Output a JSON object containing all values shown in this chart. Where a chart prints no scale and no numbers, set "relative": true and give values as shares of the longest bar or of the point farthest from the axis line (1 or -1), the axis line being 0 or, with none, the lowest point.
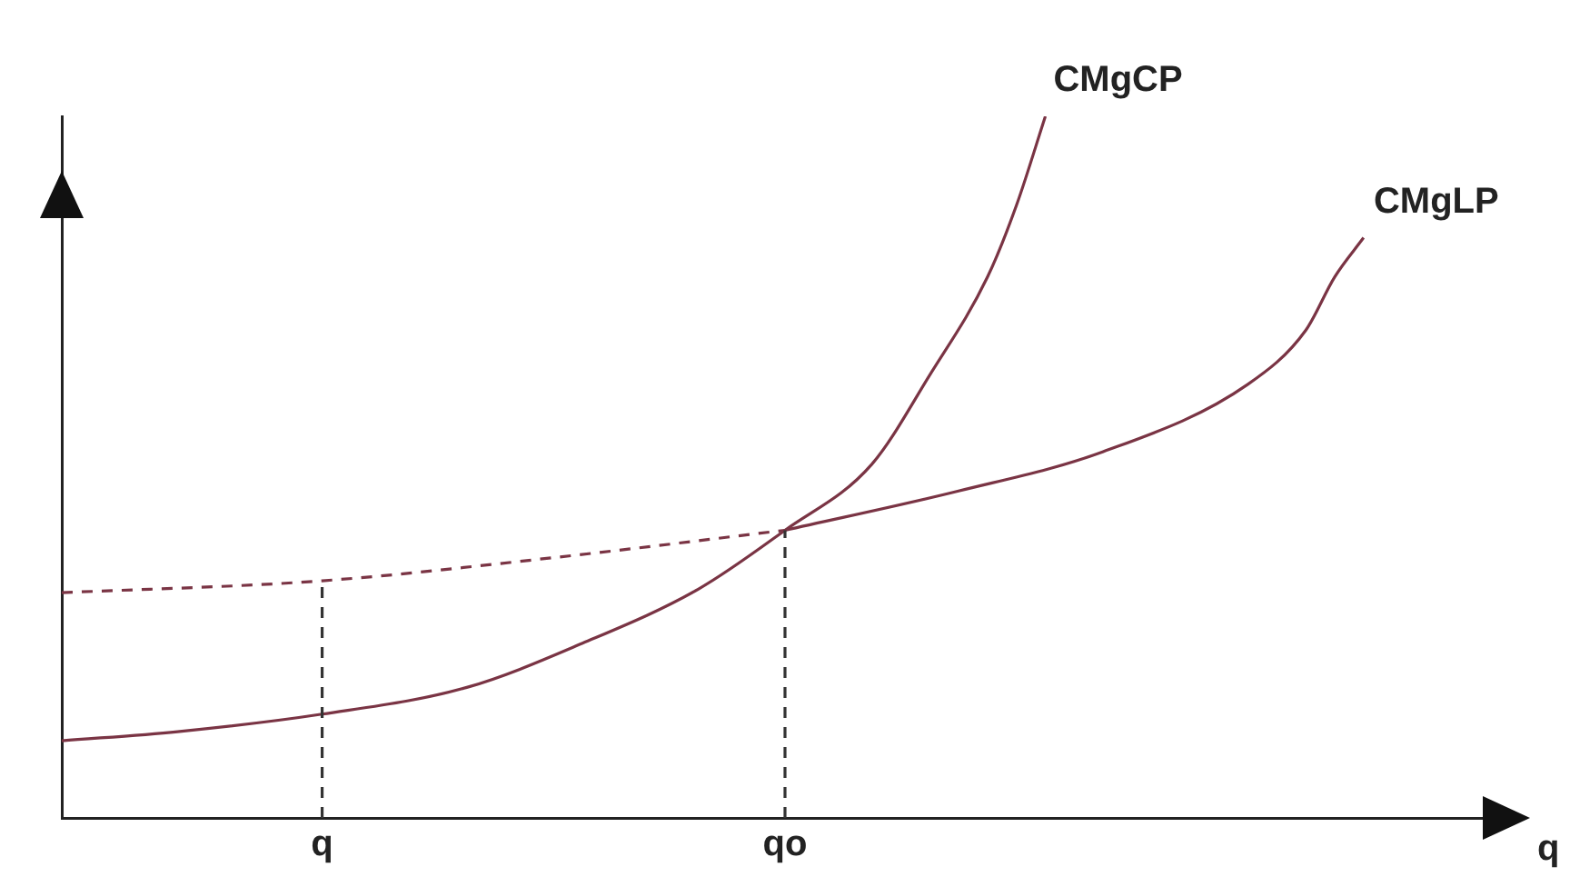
{
  "chart_data": {
    "type": "line",
    "relative": true,
    "xlabel": "q",
    "categories": [
      null,
      null,
      null,
      null,
      null,
      null,
      null,
      null,
      null,
      "q",
      null,
      null,
      null,
      null,
      null,
      null,
      null,
      null,
      null,
      null,
      null,
      null,
      null,
      null,
      null,
      "qo",
      null,
      null,
      null,
      null,
      null,
      null,
      null,
      null,
      null,
      null,
      null,
      null,
      null,
      null,
      null,
      null,
      null,
      null,
      null,
      null,
      null,
      null,
      null,
      null,
      null
    ],
    "grid": false,
    "legend": false,
    "marker": "none",
    "series": [
      {
        "name": "CMgCP",
        "color": "#7a3444",
        "line_style": "solid",
        "values": [
          0.11,
          null,
          null,
          null,
          0.123,
          null,
          null,
          null,
          null,
          0.148,
          null,
          null,
          null,
          null,
          0.186,
          null,
          null,
          null,
          0.249,
          null,
          null,
          null,
          0.326,
          null,
          null,
          0.41,
          null,
          null,
          0.504,
          null,
          0.631,
          null,
          0.771,
          0.873,
          1,
          null,
          null,
          null,
          null,
          null,
          null,
          null,
          null,
          null,
          null,
          null,
          null,
          null,
          null,
          null,
          null
        ]
      },
      {
        "name": "CMgLP",
        "color": "#7a3444",
        "line_style": "solid",
        "values": [
          null,
          null,
          null,
          null,
          null,
          null,
          null,
          null,
          null,
          null,
          null,
          null,
          null,
          null,
          null,
          null,
          null,
          null,
          null,
          null,
          null,
          null,
          null,
          null,
          null,
          0.41,
          null,
          null,
          null,
          null,
          null,
          0.466,
          null,
          null,
          null,
          null,
          0.522,
          null,
          null,
          null,
          null,
          0.618,
          null,
          0.695,
          0.771,
          0.827,
          null,
          null,
          null,
          null,
          null
        ]
      },
      {
        "color": "#7a3444",
        "line_style": "dashed",
        "values": [
          0.321,
          null,
          null,
          null,
          null,
          null,
          null,
          null,
          null,
          0.338,
          null,
          null,
          null,
          null,
          null,
          null,
          null,
          0.371,
          null,
          null,
          null,
          null,
          null,
          null,
          null,
          0.41,
          null,
          null,
          null,
          null,
          null,
          null,
          null,
          null,
          null,
          null,
          null,
          null,
          null,
          null,
          null,
          null,
          null,
          null,
          null,
          null,
          null,
          null,
          null,
          null,
          null
        ]
      }
    ],
    "ref_lines": [
      {
        "axis": "x",
        "value": "q",
        "color": "#333333",
        "line_style": "dashed"
      },
      {
        "axis": "x",
        "value": "qo",
        "color": "#333333",
        "line_style": "dashed"
      }
    ]
  }
}
